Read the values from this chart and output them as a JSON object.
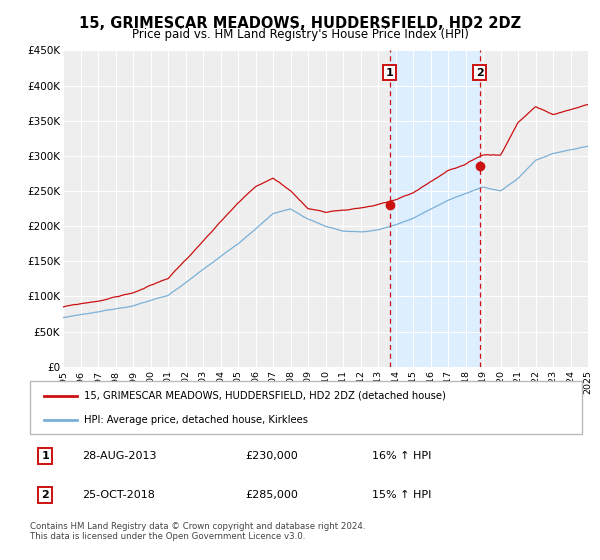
{
  "title": "15, GRIMESCAR MEADOWS, HUDDERSFIELD, HD2 2DZ",
  "subtitle": "Price paid vs. HM Land Registry's House Price Index (HPI)",
  "xlim": [
    1995.0,
    2025.0
  ],
  "ylim": [
    0,
    450000
  ],
  "yticks": [
    0,
    50000,
    100000,
    150000,
    200000,
    250000,
    300000,
    350000,
    400000,
    450000
  ],
  "ytick_labels": [
    "£0",
    "£50K",
    "£100K",
    "£150K",
    "£200K",
    "£250K",
    "£300K",
    "£350K",
    "£400K",
    "£450K"
  ],
  "hpi_color": "#7ab0d8",
  "price_color": "#cc1111",
  "shade_color": "#ddeeff",
  "marker1_date": 2013.66,
  "marker1_price": 230000,
  "marker2_date": 2018.81,
  "marker2_price": 285000,
  "legend_label1": "15, GRIMESCAR MEADOWS, HUDDERSFIELD, HD2 2DZ (detached house)",
  "legend_label2": "HPI: Average price, detached house, Kirklees",
  "note1_date": "28-AUG-2013",
  "note1_price": "£230,000",
  "note1_hpi": "16% ↑ HPI",
  "note2_date": "25-OCT-2018",
  "note2_price": "£285,000",
  "note2_hpi": "15% ↑ HPI",
  "footer": "Contains HM Land Registry data © Crown copyright and database right 2024.\nThis data is licensed under the Open Government Licence v3.0.",
  "chart_bg": "#eeeeee",
  "grid_color": "#ffffff"
}
